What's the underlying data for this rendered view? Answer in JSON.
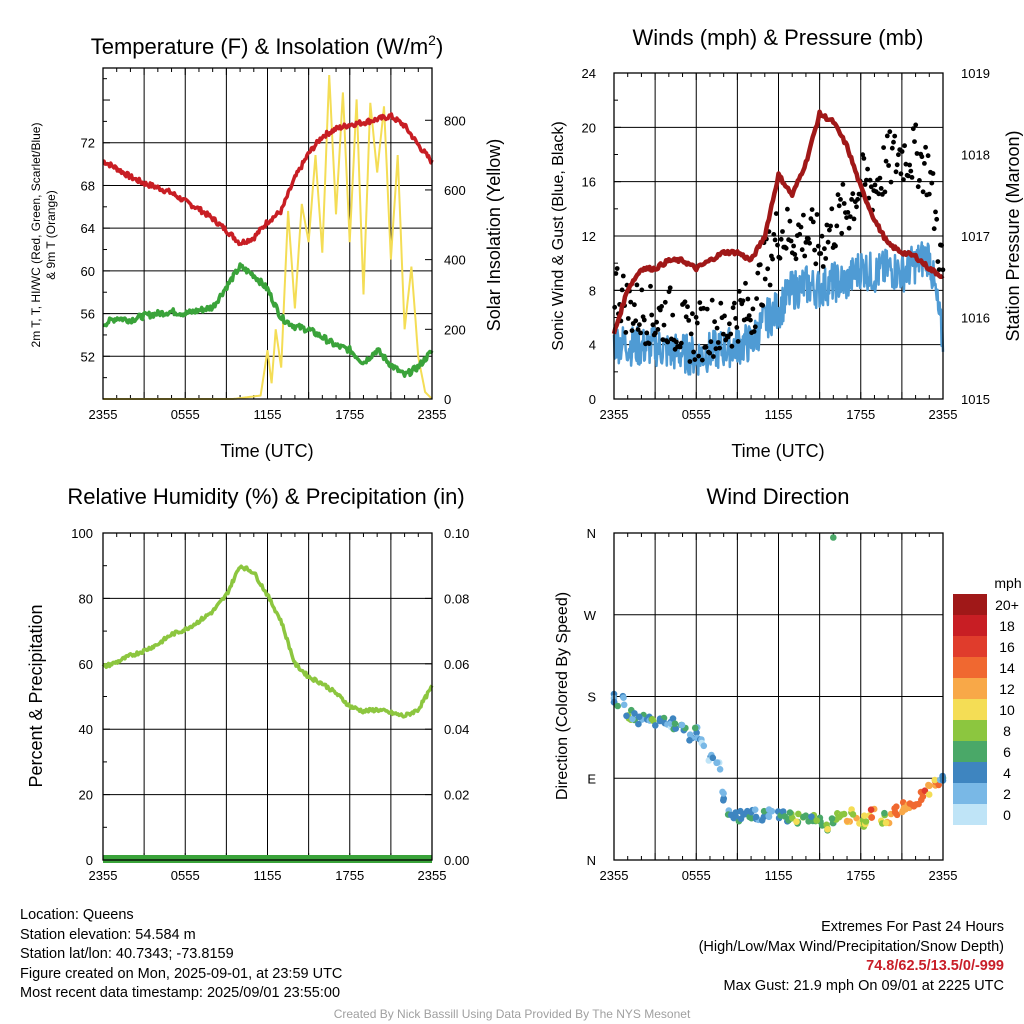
{
  "time_ticks": [
    "2355",
    "0555",
    "1155",
    "1755",
    "2355"
  ],
  "colors": {
    "temp": "#c81e24",
    "dew": "#3aa33a",
    "insolation": "#f4dd55",
    "wind": "#4f9bd4",
    "gust": "#000000",
    "pressure": "#a01818",
    "rh": "#8cc63f",
    "precip": "#3aa33a"
  },
  "chart_data": [
    {
      "type": "line",
      "title": "Temperature (F) & Insolation (W/m",
      "title_sup": "2",
      "title_close": ")",
      "xlabel": "Time (UTC)",
      "ylabel_line1": "2m T, T, HI/WC (Red, Green, Scarlet/Blue)",
      "ylabel_line2": "& 9m T (Orange)",
      "y2label": "Solar Insolation (Yellow)",
      "ylim": [
        48,
        79
      ],
      "yticks": [
        52,
        56,
        60,
        64,
        68,
        72
      ],
      "y2lim": [
        0,
        950
      ],
      "y2ticks": [
        0,
        200,
        400,
        600,
        800
      ],
      "series": [
        {
          "key": "temp",
          "axis": "left",
          "x": [
            0,
            1,
            2,
            3,
            4,
            5,
            6,
            7,
            8,
            9,
            10,
            11,
            12,
            13,
            14,
            15,
            16,
            17,
            18,
            19,
            20,
            21,
            22,
            23,
            24
          ],
          "values": [
            70.3,
            69.6,
            68.8,
            68.2,
            67.8,
            67.3,
            66.5,
            65.8,
            64.9,
            63.8,
            62.6,
            63.1,
            64.6,
            65.6,
            68.7,
            71.0,
            72.6,
            73.3,
            73.7,
            73.9,
            74.2,
            74.5,
            73.6,
            71.8,
            70.2
          ]
        },
        {
          "key": "dew",
          "axis": "left",
          "x": [
            0,
            1,
            2,
            3,
            4,
            5,
            6,
            7,
            8,
            9,
            10,
            11,
            12,
            13,
            14,
            15,
            16,
            17,
            18,
            19,
            20,
            21,
            22,
            23,
            24
          ],
          "values": [
            55.0,
            55.6,
            55.4,
            55.8,
            56.0,
            56.2,
            56.0,
            56.3,
            56.6,
            58.5,
            60.4,
            59.6,
            58.3,
            55.6,
            54.8,
            54.5,
            53.8,
            53.0,
            52.6,
            51.4,
            52.6,
            51.2,
            50.2,
            51.0,
            52.5
          ]
        },
        {
          "key": "insolation",
          "axis": "right",
          "x": [
            0,
            9.5,
            11.5,
            12,
            12.3,
            12.6,
            13,
            13.5,
            14,
            14.5,
            15,
            15.5,
            16,
            16.5,
            17,
            17.5,
            18,
            18.5,
            19,
            19.5,
            20,
            20.5,
            21,
            21.5,
            22,
            22.5,
            23,
            23.5,
            24
          ],
          "values": [
            0,
            0,
            10,
            140,
            45,
            200,
            90,
            540,
            260,
            560,
            450,
            700,
            420,
            930,
            530,
            880,
            450,
            860,
            300,
            850,
            650,
            840,
            400,
            700,
            200,
            380,
            120,
            20,
            0
          ]
        }
      ]
    },
    {
      "type": "line",
      "title": "Winds (mph) & Pressure (mb)",
      "xlabel": "Time (UTC)",
      "ylabel": "Sonic Wind & Gust (Blue, Black)",
      "y2label": "Station Pressure (Maroon)",
      "ylim": [
        0,
        24
      ],
      "yticks": [
        0,
        4,
        8,
        12,
        16,
        20,
        24
      ],
      "y2lim": [
        1015,
        1019
      ],
      "y2ticks": [
        1015,
        1016,
        1017,
        1018,
        1019
      ],
      "series": [
        {
          "key": "wind",
          "axis": "left",
          "x": [
            0,
            1,
            2,
            3,
            4,
            5,
            6,
            7,
            8,
            9,
            10,
            11,
            12,
            13,
            14,
            15,
            16,
            17,
            18,
            19,
            20,
            21,
            22,
            23,
            24
          ],
          "values": [
            4.2,
            4.0,
            3.8,
            3.9,
            3.5,
            3.4,
            3.1,
            3.5,
            3.7,
            4.0,
            4.1,
            5.8,
            6.6,
            8.0,
            8.4,
            8.1,
            8.6,
            8.6,
            9.7,
            9.2,
            9.6,
            9.3,
            10.0,
            10.6,
            4.2
          ]
        },
        {
          "key": "gust",
          "axis": "left",
          "style": "dots",
          "x": [
            0,
            1,
            2,
            3,
            4,
            5,
            6,
            7,
            8,
            9,
            10,
            11,
            12,
            13,
            14,
            15,
            16,
            17,
            18,
            19,
            20,
            21,
            22,
            23,
            24
          ],
          "values": [
            8.6,
            6.8,
            6.4,
            6.0,
            6.2,
            5.0,
            4.8,
            5.5,
            5.0,
            6.4,
            6.5,
            9.5,
            12.4,
            12.0,
            12.2,
            11.2,
            12.8,
            14.0,
            15.8,
            15.6,
            17.4,
            18.0,
            18.0,
            16.8,
            9.0
          ]
        },
        {
          "key": "pressure",
          "axis": "right",
          "x": [
            0,
            1,
            2,
            3,
            4,
            5,
            6,
            7,
            8,
            9,
            10,
            11,
            12,
            13,
            14,
            15,
            16,
            17,
            18,
            19,
            20,
            21,
            22,
            23,
            24
          ],
          "values": [
            1015.8,
            1016.35,
            1016.6,
            1016.6,
            1016.7,
            1016.7,
            1016.6,
            1016.7,
            1016.8,
            1016.8,
            1016.7,
            1017.0,
            1017.75,
            1017.5,
            1017.9,
            1018.5,
            1018.4,
            1018.1,
            1017.6,
            1017.2,
            1016.9,
            1016.8,
            1016.75,
            1016.6,
            1016.5
          ]
        }
      ]
    },
    {
      "type": "line",
      "title": "Relative Humidity (%) & Precipitation (in)",
      "ylabel": "Percent & Precipitation",
      "ylim": [
        0,
        100
      ],
      "yticks": [
        0,
        20,
        40,
        60,
        80,
        100
      ],
      "y2lim": [
        0,
        0.1
      ],
      "y2ticks": [
        "0.00",
        "0.02",
        "0.04",
        "0.06",
        "0.08",
        "0.10"
      ],
      "series": [
        {
          "key": "rh",
          "axis": "left",
          "x": [
            0,
            1,
            2,
            3,
            4,
            5,
            6,
            7,
            8,
            9,
            10,
            11,
            12,
            13,
            14,
            15,
            16,
            17,
            18,
            19,
            20,
            21,
            22,
            23,
            24
          ],
          "values": [
            59,
            60.5,
            62.5,
            64,
            66,
            69,
            70.5,
            73,
            76,
            81,
            90,
            88,
            81,
            73,
            60,
            56,
            54,
            51,
            47,
            45.5,
            46,
            45,
            44,
            46,
            53
          ]
        },
        {
          "key": "precip",
          "axis": "left",
          "x": [
            0,
            24
          ],
          "values": [
            0,
            0
          ]
        }
      ]
    },
    {
      "type": "scatter",
      "title": "Wind Direction",
      "ylabel": "Direction (Colored By Speed)",
      "yticks": [
        "N",
        "E",
        "S",
        "W",
        "N"
      ],
      "legend_title": "mph",
      "legend_labels": [
        "20+",
        "18",
        "16",
        "14",
        "12",
        "10",
        "8",
        "6",
        "4",
        "2",
        "0"
      ],
      "legend_colors": [
        "#a01818",
        "#c81e24",
        "#e03c2c",
        "#f06830",
        "#f8a848",
        "#f4dd55",
        "#8cc63f",
        "#4aa868",
        "#3e85c0",
        "#79b8e6",
        "#bfe4f7"
      ],
      "x": [
        0,
        0.5,
        1,
        1.5,
        2,
        2.5,
        3,
        3.5,
        4,
        4.5,
        5,
        5.5,
        6,
        6.5,
        7,
        7.5,
        8,
        8.5,
        9,
        9.5,
        10,
        10.5,
        11,
        11.5,
        12,
        12.5,
        13,
        13.5,
        14,
        14.5,
        15,
        15.5,
        16,
        16.5,
        17,
        17.5,
        18,
        18.5,
        19,
        19.5,
        20,
        20.5,
        21,
        21.5,
        22,
        22.5,
        23,
        23.5,
        24,
        16
      ],
      "values": [
        178,
        175,
        160,
        160,
        154,
        152,
        152,
        155,
        150,
        150,
        145,
        137,
        140,
        130,
        115,
        105,
        70,
        50,
        48,
        50,
        52,
        50,
        48,
        50,
        50,
        48,
        48,
        46,
        45,
        44,
        42,
        38,
        44,
        47,
        47,
        50,
        40,
        45,
        52,
        46,
        45,
        55,
        58,
        60,
        65,
        72,
        78,
        85,
        90,
        355
      ],
      "speeds": [
        4,
        4,
        6,
        4,
        4,
        4,
        6,
        4,
        2,
        4,
        4,
        2,
        4,
        2,
        2,
        2,
        4,
        4,
        4,
        4,
        4,
        4,
        4,
        2,
        4,
        4,
        6,
        8,
        6,
        6,
        6,
        8,
        6,
        8,
        10,
        10,
        8,
        10,
        14,
        8,
        12,
        14,
        12,
        14,
        12,
        14,
        10,
        12,
        4,
        6
      ]
    }
  ],
  "info": {
    "location": "Location: Queens",
    "elevation": "Station elevation: 54.584 m",
    "latlon": "Station lat/lon: 40.7343; -73.8159",
    "created": "Figure created on Mon, 2025-09-01, at 23:59 UTC",
    "recent": "Most recent data timestamp: 2025/09/01 23:55:00"
  },
  "extremes": {
    "title": "Extremes For Past 24 Hours",
    "subtitle": "(High/Low/Max Wind/Precipitation/Snow Depth)",
    "values": "74.8/62.5/13.5/0/-999",
    "max_gust": "Max Gust: 21.9 mph On 09/01 at 2225 UTC"
  },
  "credit": "Created By Nick Bassill Using Data Provided By The NYS Mesonet"
}
